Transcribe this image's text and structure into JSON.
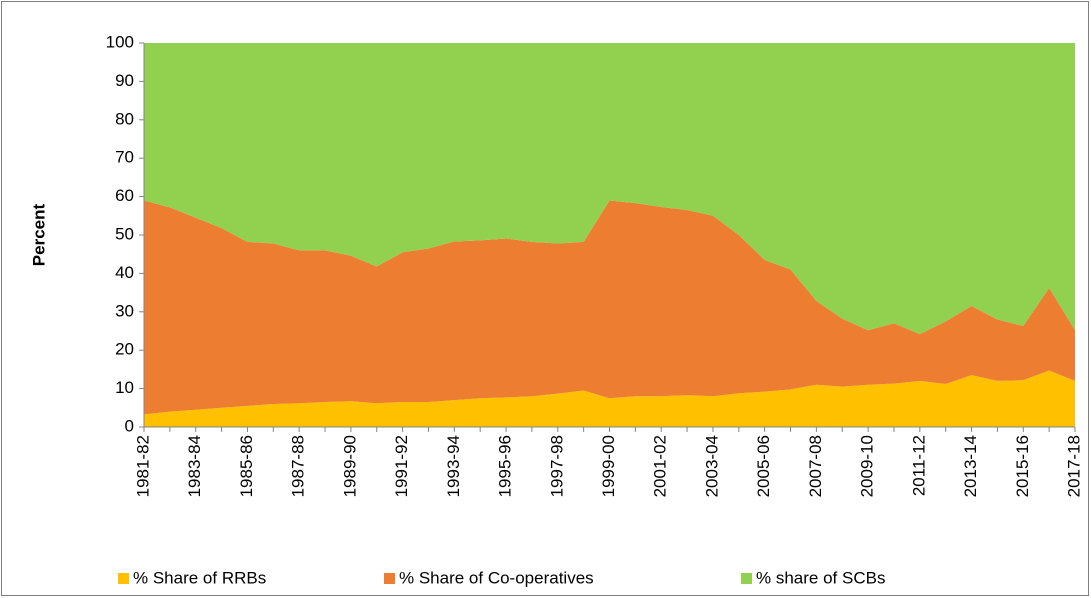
{
  "chart_data": {
    "type": "stacked_area",
    "y_label": "Percent",
    "categories": [
      "1981-82",
      null,
      "1983-84",
      null,
      "1985-86",
      null,
      "1987-88",
      null,
      "1989-90",
      null,
      "1991-92",
      null,
      "1993-94",
      null,
      "1995-96",
      null,
      "1997-98",
      null,
      "1999-00",
      null,
      "2001-02",
      null,
      "2003-04",
      null,
      "2005-06",
      null,
      "2007-08",
      null,
      "2009-10",
      null,
      "2011-12",
      null,
      "2013-14",
      null,
      "2015-16",
      null,
      "2017-18"
    ],
    "series": [
      {
        "name": "% Share of RRBs",
        "color": "#ffc000",
        "values": [
          3.3,
          4,
          4.5,
          5,
          5.5,
          6,
          6.2,
          6.5,
          6.7,
          6.2,
          6.5,
          6.5,
          7,
          7.5,
          7.7,
          8,
          8.7,
          9.5,
          7.5,
          8,
          8,
          8.3,
          8,
          8.8,
          9.2,
          9.8,
          11,
          10.5,
          11,
          11.3,
          12,
          11.2,
          13.5,
          12,
          12.2,
          14.7,
          12
        ]
      },
      {
        "name": "% Share of Co-operatives",
        "color": "#ed7d31",
        "values": [
          55.7,
          53.2,
          50,
          46.8,
          42.7,
          41.8,
          39.8,
          39.5,
          37.9,
          35.6,
          39,
          40,
          41.3,
          41.1,
          41.4,
          40.2,
          39.1,
          38.7,
          51.5,
          50.3,
          49.3,
          48.2,
          47,
          41.2,
          34.3,
          31.2,
          21.8,
          17.7,
          14.2,
          15.7,
          12.2,
          16.3,
          18,
          16,
          14.1,
          21.5,
          13.2
        ]
      },
      {
        "name": "% share of SCBs",
        "color": "#92d050",
        "values": [
          41,
          42.8,
          45.5,
          48.2,
          51.8,
          52.2,
          54,
          54,
          55.4,
          58.2,
          54.5,
          53.5,
          51.7,
          51.4,
          50.9,
          51.8,
          52.2,
          51.8,
          41,
          41.7,
          42.7,
          43.5,
          45,
          50,
          56.5,
          59,
          67.2,
          71.8,
          74.8,
          73,
          75.8,
          72.5,
          68.5,
          72,
          73.7,
          63.8,
          74.8
        ]
      }
    ],
    "ylim": [
      0,
      100
    ],
    "yticks": [
      0,
      10,
      20,
      30,
      40,
      50,
      60,
      70,
      80,
      90,
      100
    ],
    "legend": "bottom"
  }
}
